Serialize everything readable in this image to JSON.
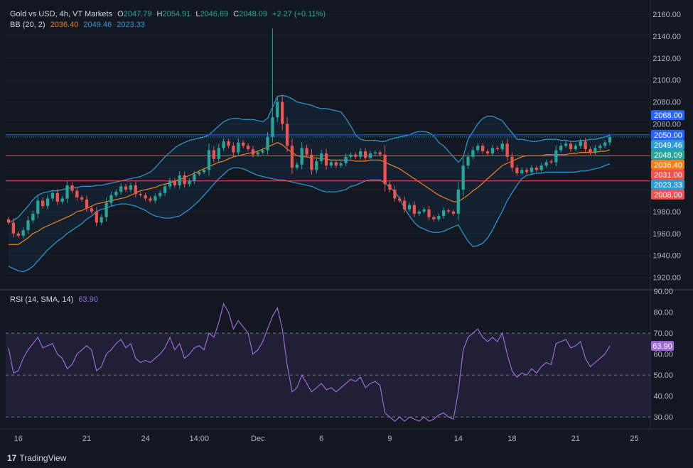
{
  "header": {
    "symbol": "Gold vs USD, 4h, VT Markets",
    "o_label": "O",
    "o": "2047.79",
    "h_label": "H",
    "h": "2054.91",
    "l_label": "L",
    "l": "2046.69",
    "c_label": "C",
    "c": "2048.09",
    "change": "+2.27 (+0.11%)"
  },
  "bb_legend": {
    "name": "BB (20, 2)",
    "basis": "2036.40",
    "upper": "2049.46",
    "lower": "2023.33"
  },
  "rsi_legend": {
    "name": "RSI (14, SMA, 14)",
    "value": "63.90"
  },
  "brand": {
    "logo": "17",
    "name": "TradingView"
  },
  "colors": {
    "up": "#26a69a",
    "down": "#ef5350",
    "basis": "#f57f17",
    "band": "#2e9bd6",
    "rsi": "#9c6ad6",
    "support": "#ef5350",
    "resistance": "#2962ff",
    "background": "#131722"
  },
  "chart_data": [
    {
      "type": "candlestick",
      "price_axis": {
        "ticks": [
          2160,
          2140,
          2120,
          2100,
          2080,
          2060,
          2040,
          2020,
          2000,
          1980,
          1960,
          1940,
          1920
        ],
        "range": [
          1910,
          2173
        ]
      },
      "time_axis": {
        "ticks": [
          "16",
          "21",
          "24",
          "14:00",
          "Dec",
          "6",
          "9",
          "14",
          "18",
          "21",
          "25"
        ]
      },
      "price_labels": [
        {
          "text": "2068.00",
          "value": 2068,
          "color": "#2962ff"
        },
        {
          "text": "2050.00",
          "value": 2050,
          "color": "#2962ff"
        },
        {
          "text": "2049.46",
          "value": 2049.46,
          "color": "#2e9bd6"
        },
        {
          "text": "2048.09",
          "value": 2048.09,
          "color": "#26a69a"
        },
        {
          "text": "2036.40",
          "value": 2036.4,
          "color": "#f57f17"
        },
        {
          "text": "2031.00",
          "value": 2031,
          "color": "#ef5350"
        },
        {
          "text": "2023.33",
          "value": 2023.33,
          "color": "#2e9bd6"
        },
        {
          "text": "2008.00",
          "value": 2008,
          "color": "#ef5350"
        }
      ],
      "horizontal_lines": [
        {
          "value": 2050,
          "color": "#2962ff"
        },
        {
          "value": 2031,
          "color": "#ef5350"
        },
        {
          "value": 2008,
          "color": "#ef5350"
        }
      ],
      "close": [
        1970,
        1960,
        1958,
        1963,
        1972,
        1978,
        1990,
        1985,
        1992,
        1997,
        1989,
        1992,
        2004,
        1999,
        1993,
        1991,
        1983,
        1980,
        1970,
        1975,
        1988,
        1995,
        1998,
        2003,
        2000,
        2004,
        1996,
        1995,
        1992,
        1990,
        1994,
        1997,
        2003,
        2008,
        2004,
        2013,
        2005,
        2008,
        2014,
        2016,
        2018,
        2036,
        2028,
        2038,
        2044,
        2040,
        2034,
        2043,
        2040,
        2037,
        2032,
        2034,
        2036,
        2048,
        2066,
        2080,
        2060,
        2040,
        2020,
        2023,
        2038,
        2032,
        2018,
        2026,
        2033,
        2022,
        2025,
        2022,
        2024,
        2030,
        2032,
        2030,
        2035,
        2029,
        2033,
        2034,
        2032,
        2005,
        2000,
        1992,
        1990,
        1982,
        1986,
        1978,
        1980,
        1982,
        1975,
        1973,
        1976,
        1981,
        1980,
        1978,
        2000,
        2022,
        2030,
        2036,
        2040,
        2035,
        2033,
        2038,
        2037,
        2042,
        2030,
        2020,
        2015,
        2018,
        2016,
        2020,
        2018,
        2022,
        2025,
        2025,
        2036,
        2040,
        2042,
        2037,
        2040,
        2044,
        2037,
        2034,
        2038,
        2040,
        2043,
        2048
      ],
      "bollinger": {
        "basis": [
          1950,
          1950,
          1950,
          1953,
          1956,
          1960,
          1962,
          1965,
          1967,
          1969,
          1971,
          1973,
          1975,
          1977,
          1980,
          1981,
          1983,
          1985,
          1987,
          1988,
          1989,
          1990,
          1991,
          1992,
          1993,
          1995,
          1997,
          1999,
          2000,
          2001,
          2002,
          2004,
          2005,
          2006,
          2008,
          2009,
          2011,
          2013,
          2015,
          2017,
          2019,
          2021,
          2023,
          2025,
          2026,
          2028,
          2030,
          2031,
          2032,
          2033,
          2034,
          2035,
          2037,
          2039,
          2041,
          2043,
          2041,
          2037,
          2034,
          2031,
          2030,
          2030,
          2029,
          2029,
          2028,
          2028,
          2027,
          2027,
          2027,
          2027,
          2027,
          2026,
          2026,
          2026,
          2027,
          2027,
          2027,
          2025,
          2023,
          2021,
          2019,
          2016,
          2013,
          2010,
          2007,
          2004,
          2001,
          1998,
          1995,
          1993,
          1991,
          1989,
          1989,
          1992,
          1995,
          1999,
          2002,
          2006,
          2010,
          2014,
          2018,
          2022,
          2024,
          2026,
          2028,
          2030,
          2031,
          2031,
          2031,
          2031,
          2032,
          2032,
          2032,
          2032,
          2032,
          2033,
          2033,
          2034,
          2034,
          2034,
          2034,
          2035,
          2035,
          2036.4
        ],
        "upper": [
          1970,
          1972,
          1975,
          1980,
          1985,
          1991,
          1995,
          1997,
          1998,
          1999,
          1999,
          2000,
          2001,
          2002,
          2002,
          2003,
          2003,
          2003,
          2004,
          2004,
          2005,
          2006,
          2007,
          2008,
          2009,
          2010,
          2011,
          2012,
          2014,
          2016,
          2020,
          2025,
          2030,
          2034,
          2038,
          2041,
          2043,
          2045,
          2046,
          2047,
          2048,
          2050,
          2054,
          2058,
          2062,
          2064,
          2065,
          2065,
          2064,
          2064,
          2064,
          2063,
          2062,
          2065,
          2075,
          2085,
          2086,
          2085,
          2083,
          2080,
          2079,
          2078,
          2077,
          2075,
          2074,
          2074,
          2073,
          2072,
          2071,
          2065,
          2058,
          2050,
          2046,
          2045,
          2045,
          2045,
          2044,
          2044,
          2046,
          2047,
          2048,
          2049,
          2050,
          2052,
          2053,
          2053,
          2052,
          2049,
          2043,
          2040,
          2035,
          2030,
          2025,
          2030,
          2046,
          2053,
          2060,
          2065,
          2067,
          2067,
          2065,
          2063,
          2057,
          2052,
          2046,
          2046,
          2045,
          2044,
          2044,
          2045,
          2046,
          2046,
          2046,
          2045,
          2045,
          2044,
          2044,
          2045,
          2045,
          2046,
          2046,
          2047,
          2048,
          2049.46
        ],
        "lower": [
          1930,
          1928,
          1926,
          1925,
          1927,
          1930,
          1935,
          1940,
          1945,
          1949,
          1953,
          1956,
          1960,
          1963,
          1966,
          1969,
          1973,
          1976,
          1980,
          1982,
          1983,
          1985,
          1986,
          1987,
          1987,
          1986,
          1985,
          1983,
          1981,
          1978,
          1976,
          1975,
          1974,
          1974,
          1975,
          1976,
          1979,
          1982,
          1986,
          1990,
          1995,
          2000,
          2005,
          2010,
          2014,
          2018,
          2020,
          2020,
          2019,
          2017,
          2015,
          2013,
          2012,
          2011,
          2010,
          2009,
          2009,
          2008,
          2007,
          2006,
          2005,
          2004,
          2003,
          2001,
          1999,
          1998,
          1998,
          1998,
          1999,
          2000,
          2003,
          2004,
          2006,
          2008,
          2009,
          2009,
          2009,
          2006,
          2002,
          1998,
          1992,
          1983,
          1976,
          1970,
          1966,
          1964,
          1962,
          1961,
          1961,
          1962,
          1964,
          1966,
          1968,
          1960,
          1953,
          1948,
          1949,
          1951,
          1956,
          1963,
          1972,
          1980,
          1990,
          1997,
          2004,
          2010,
          2013,
          2014,
          2015,
          2015,
          2016,
          2016,
          2016,
          2016,
          2016,
          2016,
          2016,
          2017,
          2017,
          2018,
          2019,
          2020,
          2022,
          2023.33
        ]
      }
    },
    {
      "type": "line",
      "name": "RSI (14, SMA, 14)",
      "y_axis": {
        "ticks": [
          90,
          80,
          70,
          60,
          50,
          40,
          30
        ],
        "range": [
          25,
          90
        ]
      },
      "levels": [
        70,
        50,
        30
      ],
      "values": [
        63,
        51,
        52,
        58,
        62,
        65,
        68,
        63,
        64,
        65,
        60,
        58,
        53,
        55,
        60,
        62,
        64,
        62,
        52,
        54,
        60,
        62,
        65,
        67,
        63,
        65,
        58,
        56,
        57,
        56,
        58,
        60,
        63,
        68,
        62,
        65,
        58,
        60,
        63,
        64,
        62,
        70,
        68,
        75,
        84,
        80,
        72,
        76,
        73,
        70,
        60,
        62,
        66,
        72,
        78,
        82,
        72,
        55,
        42,
        44,
        50,
        46,
        42,
        44,
        46,
        43,
        44,
        42,
        44,
        46,
        48,
        47,
        49,
        44,
        46,
        47,
        45,
        32,
        30,
        28,
        30,
        28,
        30,
        29,
        28,
        30,
        28,
        29,
        31,
        32,
        30,
        29,
        42,
        62,
        68,
        70,
        72,
        68,
        66,
        68,
        66,
        70,
        60,
        52,
        49,
        51,
        50,
        53,
        51,
        54,
        56,
        55,
        65,
        66,
        67,
        63,
        64,
        66,
        58,
        54,
        56,
        58,
        60,
        63.9
      ]
    }
  ]
}
